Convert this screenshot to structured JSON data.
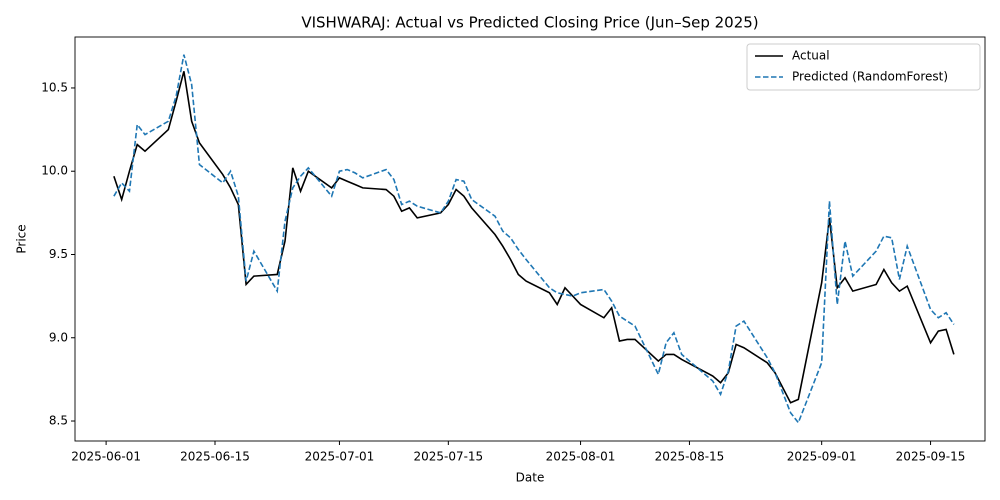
{
  "chart_data": {
    "type": "line",
    "title": "VISHWARAJ: Actual vs Predicted Closing Price (Jun–Sep 2025)",
    "xlabel": "Date",
    "ylabel": "Price",
    "x": [
      "2025-06-02",
      "2025-06-03",
      "2025-06-04",
      "2025-06-05",
      "2025-06-06",
      "2025-06-09",
      "2025-06-10",
      "2025-06-11",
      "2025-06-12",
      "2025-06-13",
      "2025-06-16",
      "2025-06-17",
      "2025-06-18",
      "2025-06-19",
      "2025-06-20",
      "2025-06-23",
      "2025-06-24",
      "2025-06-25",
      "2025-06-26",
      "2025-06-27",
      "2025-06-30",
      "2025-07-01",
      "2025-07-02",
      "2025-07-03",
      "2025-07-04",
      "2025-07-07",
      "2025-07-08",
      "2025-07-09",
      "2025-07-10",
      "2025-07-11",
      "2025-07-14",
      "2025-07-15",
      "2025-07-16",
      "2025-07-17",
      "2025-07-18",
      "2025-07-21",
      "2025-07-22",
      "2025-07-23",
      "2025-07-24",
      "2025-07-25",
      "2025-07-28",
      "2025-07-29",
      "2025-07-30",
      "2025-07-31",
      "2025-08-01",
      "2025-08-04",
      "2025-08-05",
      "2025-08-06",
      "2025-08-07",
      "2025-08-08",
      "2025-08-11",
      "2025-08-12",
      "2025-08-13",
      "2025-08-14",
      "2025-08-18",
      "2025-08-19",
      "2025-08-20",
      "2025-08-21",
      "2025-08-22",
      "2025-08-25",
      "2025-08-26",
      "2025-08-28",
      "2025-08-29",
      "2025-09-01",
      "2025-09-02",
      "2025-09-03",
      "2025-09-04",
      "2025-09-05",
      "2025-09-08",
      "2025-09-09",
      "2025-09-10",
      "2025-09-11",
      "2025-09-12",
      "2025-09-15",
      "2025-09-16",
      "2025-09-17",
      "2025-09-18"
    ],
    "series": [
      {
        "name": "Actual",
        "color": "#000000",
        "linestyle": "solid",
        "values": [
          9.97,
          9.83,
          10.0,
          10.16,
          10.12,
          10.25,
          10.42,
          10.6,
          10.3,
          10.17,
          9.98,
          9.9,
          9.8,
          9.32,
          9.37,
          9.38,
          9.58,
          10.02,
          9.88,
          10.0,
          9.9,
          9.96,
          9.94,
          9.92,
          9.9,
          9.89,
          9.85,
          9.76,
          9.78,
          9.72,
          9.75,
          9.8,
          9.89,
          9.85,
          9.78,
          9.62,
          9.55,
          9.47,
          9.38,
          9.34,
          9.27,
          9.2,
          9.3,
          9.25,
          9.2,
          9.12,
          9.18,
          8.98,
          8.99,
          8.99,
          8.86,
          8.9,
          8.9,
          8.87,
          8.77,
          8.73,
          8.79,
          8.96,
          8.94,
          8.85,
          8.79,
          8.61,
          8.63,
          9.33,
          9.72,
          9.3,
          9.36,
          9.28,
          9.32,
          9.41,
          9.33,
          9.28,
          9.31,
          8.97,
          9.04,
          9.05,
          8.9
        ]
      },
      {
        "name": "Predicted (RandomForest)",
        "color": "#1f77b4",
        "linestyle": "dashed",
        "values": [
          9.85,
          9.93,
          9.88,
          10.28,
          10.22,
          10.3,
          10.45,
          10.7,
          10.52,
          10.04,
          9.93,
          10.0,
          9.85,
          9.34,
          9.52,
          9.28,
          9.7,
          9.9,
          9.97,
          10.02,
          9.85,
          10.0,
          10.01,
          9.99,
          9.96,
          10.01,
          9.95,
          9.8,
          9.82,
          9.79,
          9.75,
          9.82,
          9.95,
          9.94,
          9.83,
          9.73,
          9.64,
          9.6,
          9.53,
          9.47,
          9.3,
          9.27,
          9.26,
          9.25,
          9.27,
          9.29,
          9.22,
          9.13,
          9.1,
          9.07,
          8.78,
          8.97,
          9.03,
          8.9,
          8.74,
          8.66,
          8.8,
          9.07,
          9.1,
          8.88,
          8.79,
          8.55,
          8.49,
          8.85,
          9.82,
          9.2,
          9.58,
          9.37,
          9.52,
          9.61,
          9.6,
          9.35,
          9.55,
          9.17,
          9.12,
          9.15,
          9.08
        ]
      }
    ],
    "xlim": [
      "2025-05-28",
      "2025-09-22"
    ],
    "xticks": [
      "2025-06-01",
      "2025-06-15",
      "2025-07-01",
      "2025-07-15",
      "2025-08-01",
      "2025-08-15",
      "2025-09-01",
      "2025-09-15"
    ],
    "ylim": [
      8.38,
      10.806
    ],
    "yticks": [
      8.5,
      9.0,
      9.5,
      10.0,
      10.5
    ],
    "yticklabels": [
      "8.5",
      "9.0",
      "9.5",
      "10.0",
      "10.5"
    ],
    "grid": false,
    "legend": "upper right"
  }
}
